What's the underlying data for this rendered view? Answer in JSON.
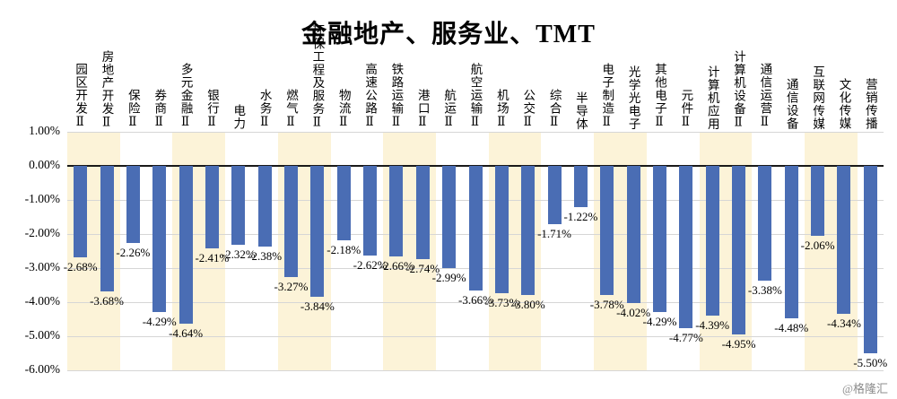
{
  "title": "金融地产、服务业、TMT",
  "watermark": "@格隆汇",
  "chart_data": {
    "type": "bar",
    "title": "金融地产、服务业、TMT",
    "categories": [
      "园区开发Ⅱ",
      "房地产开发Ⅱ",
      "保险Ⅱ",
      "券商Ⅱ",
      "多元金融Ⅱ",
      "银行Ⅱ",
      "电力",
      "水务Ⅱ",
      "燃气Ⅱ",
      "环保工程及服务Ⅱ",
      "物流Ⅱ",
      "高速公路Ⅱ",
      "铁路运输Ⅱ",
      "港口Ⅱ",
      "航运Ⅱ",
      "航空运输Ⅱ",
      "机场Ⅱ",
      "公交Ⅱ",
      "综合Ⅱ",
      "半导体",
      "电子制造Ⅱ",
      "光学光电子",
      "其他电子Ⅱ",
      "元件Ⅱ",
      "计算机应用",
      "计算机设备Ⅱ",
      "通信运营Ⅱ",
      "通信设备",
      "互联网传媒",
      "文化传媒",
      "营销传播"
    ],
    "values": [
      -2.68,
      -3.68,
      -2.26,
      -4.29,
      -4.64,
      -2.41,
      -2.32,
      -2.38,
      -3.27,
      -3.84,
      -2.18,
      -2.62,
      -2.66,
      -2.74,
      -2.99,
      -3.66,
      -3.73,
      -3.8,
      -1.71,
      -1.22,
      -3.78,
      -4.02,
      -4.29,
      -4.77,
      -4.39,
      -4.95,
      -3.38,
      -4.48,
      -2.06,
      -4.34,
      -5.5
    ],
    "value_labels": [
      "-2.68%",
      "-3.68%",
      "-2.26%",
      "-4.29%",
      "-4.64%",
      "-2.41%",
      "-2.32%",
      "-2.38%",
      "-3.27%",
      "-3.84%",
      "-2.18%",
      "-2.62%",
      "-2.66%",
      "-2.74%",
      "-2.99%",
      "-3.66%",
      "-3.73%",
      "-3.80%",
      "-1.71%",
      "-1.22%",
      "-3.78%",
      "-4.02%",
      "-4.29%",
      "-4.77%",
      "-4.39%",
      "-4.95%",
      "-3.38%",
      "-4.48%",
      "-2.06%",
      "-4.34%",
      "-5.50%"
    ],
    "xlabel": "",
    "ylabel": "",
    "ylim": [
      -6,
      1
    ],
    "y_ticks": [
      1,
      0,
      -1,
      -2,
      -3,
      -4,
      -5,
      -6
    ],
    "y_tick_labels": [
      "1.00%",
      "0.00%",
      "-1.00%",
      "-2.00%",
      "-3.00%",
      "-4.00%",
      "-5.00%",
      "-6.00%"
    ],
    "grid": true,
    "legend_position": "none",
    "colors": {
      "bar": "#4a6db4",
      "stripe": "#fcf3d8",
      "stripe_alt": "#ffffff",
      "grid_line": "#d6d6d6",
      "zero_line": "#1a1a1a",
      "text": "#000000",
      "watermark": "#8c8c8c"
    }
  }
}
